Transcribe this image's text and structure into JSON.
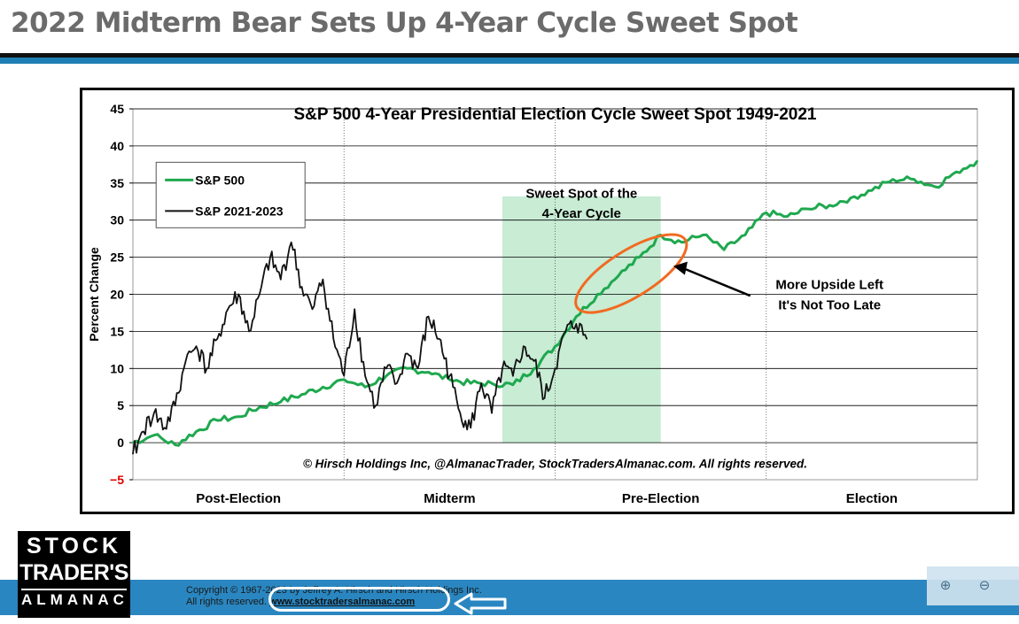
{
  "slide_title": "2022 Midterm Bear Sets Up 4-Year Cycle Sweet Spot",
  "colors": {
    "sp500": "#1fa84f",
    "sp2021": "#111111",
    "sweet_spot": "#c8ecd4",
    "ellipse": "#f26a21",
    "title_text": "#6b6b6b",
    "footer": "#2a86c0",
    "negative_tick": "#e00000"
  },
  "chart_data": {
    "type": "line",
    "title": "S&P 500 4-Year Presidential Election Cycle Sweet Spot 1949-2021",
    "ylabel": "Percent Change",
    "ylim": [
      -5,
      45
    ],
    "yticks": [
      -5,
      0,
      5,
      10,
      15,
      20,
      25,
      30,
      35,
      40,
      45
    ],
    "ytick_labels": [
      "−5",
      "0",
      "5",
      "10",
      "15",
      "20",
      "25",
      "30",
      "35",
      "40",
      "45"
    ],
    "xlim": [
      0,
      4
    ],
    "x_quarters": [
      "Post-Election",
      "Midterm",
      "Pre-Election",
      "Election"
    ],
    "legend": [
      "S&P 500",
      "S&P 2021-2023"
    ],
    "shaded_region": {
      "x_start": 1.75,
      "x_end": 2.5,
      "label_line1": "Sweet Spot of the",
      "label_line2": "4-Year Cycle"
    },
    "annotation_line1": "More Upside Left",
    "annotation_line2": "It's Not Too Late",
    "credit": "© Hirsch Holdings Inc, @AlmanacTrader, StockTradersAlmanac.com. All rights reserved.",
    "series": [
      {
        "name": "S&P 500",
        "x": [
          0,
          0.1,
          0.2,
          0.3,
          0.4,
          0.5,
          0.6,
          0.7,
          0.8,
          0.9,
          1.0,
          1.1,
          1.2,
          1.3,
          1.4,
          1.5,
          1.6,
          1.7,
          1.8,
          1.9,
          2.0,
          2.1,
          2.2,
          2.3,
          2.4,
          2.5,
          2.6,
          2.7,
          2.8,
          2.9,
          3.0,
          3.1,
          3.2,
          3.3,
          3.4,
          3.5,
          3.6,
          3.7,
          3.8,
          3.9,
          4.0
        ],
        "values": [
          0,
          1,
          -0.3,
          1.5,
          3,
          3.5,
          4.8,
          5.5,
          6.5,
          7.5,
          8.5,
          7.5,
          9,
          10,
          9.5,
          8.5,
          8,
          8,
          7.8,
          10,
          13,
          17,
          20,
          22.5,
          25,
          28,
          27,
          28,
          26,
          28,
          31,
          30.5,
          31.5,
          32,
          33,
          34,
          35.5,
          35.5,
          34.5,
          36.5,
          38
        ]
      },
      {
        "name": "S&P 2021-2023",
        "x": [
          0,
          0.05,
          0.1,
          0.15,
          0.2,
          0.25,
          0.3,
          0.35,
          0.4,
          0.45,
          0.5,
          0.55,
          0.6,
          0.65,
          0.7,
          0.75,
          0.8,
          0.85,
          0.9,
          0.95,
          1.0,
          1.05,
          1.1,
          1.15,
          1.2,
          1.25,
          1.3,
          1.35,
          1.4,
          1.45,
          1.5,
          1.55,
          1.6,
          1.65,
          1.7,
          1.75,
          1.8,
          1.85,
          1.9,
          1.95,
          2.0,
          2.05,
          2.1,
          2.15
        ],
        "values": [
          -1.5,
          1.5,
          4,
          2,
          5,
          11,
          13,
          10,
          14,
          18,
          20,
          15,
          20,
          25,
          22,
          27,
          21,
          18,
          22,
          14,
          9,
          18,
          9,
          5,
          10,
          8,
          12,
          10,
          17,
          14,
          9,
          4,
          2,
          8,
          4,
          10,
          9,
          13,
          11,
          6,
          10,
          15,
          16,
          14
        ]
      }
    ]
  },
  "footer": {
    "copyright_line1": "Copyright © 1967-2023 by Jeffrey A. Hirsch and Hirsch Holdings Inc.",
    "copyright_line2": "All rights reserved.",
    "url": "www.stocktradersalmanac.com"
  },
  "logo": {
    "line1": "STOCK",
    "line2": "TRADER'S",
    "line3": "ALMANAC"
  },
  "zoom": {
    "in_icon": "zoom-in-icon",
    "out_icon": "zoom-out-icon",
    "in_glyph": "⊕",
    "out_glyph": "⊖"
  }
}
